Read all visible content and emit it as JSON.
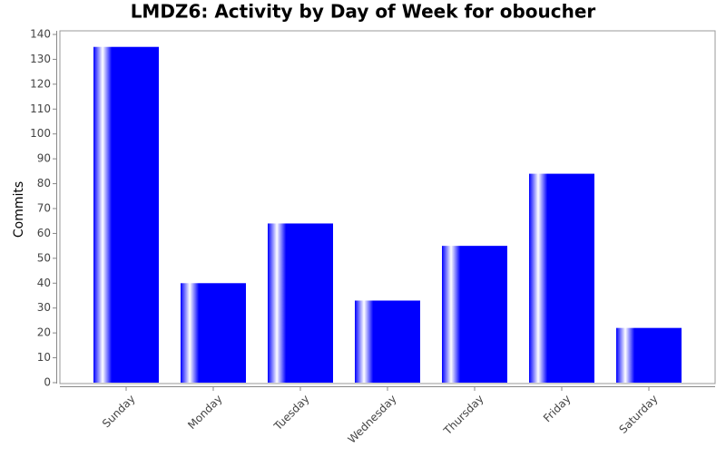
{
  "chart_data": {
    "type": "bar",
    "title": "LMDZ6: Activity by Day of Week for oboucher",
    "y_label": "Commits",
    "categories": [
      "Sunday",
      "Monday",
      "Tuesday",
      "Wednesday",
      "Thursday",
      "Friday",
      "Saturday"
    ],
    "values": [
      135,
      40,
      64,
      33,
      55,
      84,
      22
    ],
    "color": "#0000ff",
    "ylim": [
      0,
      140
    ],
    "yticks": [
      0,
      10,
      20,
      30,
      40,
      50,
      60,
      70,
      80,
      90,
      100,
      110,
      120,
      130,
      140
    ],
    "grid": false
  }
}
